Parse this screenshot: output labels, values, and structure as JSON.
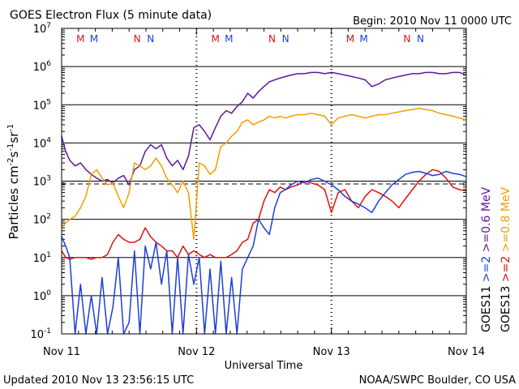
{
  "header": {
    "title": "GOES Electron Flux (5 minute data)",
    "begin": "Begin: 2010 Nov 11 0000 UTC"
  },
  "footer": {
    "updated": "Updated 2010 Nov 13 23:56:15 UTC",
    "credit": "NOAA/SWPC Boulder, CO USA"
  },
  "colors": {
    "goes11_ge2": "#1d3fd8",
    "goes13_ge2": "#e01010",
    "goes11_ge06": "#5a1a9a",
    "goes13_ge08": "#f0a000",
    "marker_M": "#e01010",
    "marker_N_red": "#e01010",
    "marker_N_blue": "#1d3fd8",
    "marker_M_blue": "#1d3fd8",
    "threshold": "#000000"
  },
  "chart_data": {
    "type": "line",
    "title": "GOES Electron Flux (5 minute data)",
    "xlabel": "Universal Time",
    "ylabel": "Particles cm⁻²s⁻¹sr⁻¹",
    "ylabel_parts": {
      "base": "Particles cm",
      "e1": "-2",
      "mid1": "s",
      "e2": "-1",
      "mid2": "sr",
      "e3": "-1"
    },
    "yscale": "log",
    "ylim": [
      0.1,
      10000000
    ],
    "xlim": [
      0,
      3
    ],
    "x_tick_labels": [
      "Nov 11",
      "Nov 12",
      "Nov 13",
      "Nov 14"
    ],
    "y_tick_labels": [
      {
        "base": "10",
        "exp": "7"
      },
      {
        "base": "10",
        "exp": "6"
      },
      {
        "base": "10",
        "exp": "5"
      },
      {
        "base": "10",
        "exp": "4"
      },
      {
        "base": "10",
        "exp": "3"
      },
      {
        "base": "10",
        "exp": "2"
      },
      {
        "base": "10",
        "exp": "1"
      },
      {
        "base": "10",
        "exp": "0"
      },
      {
        "base": "10",
        "exp": "-1"
      }
    ],
    "grid": true,
    "threshold_dashed": 1000,
    "legend_right": [
      {
        "text": "GOES11",
        "color": "#000000"
      },
      {
        "text": ">=2",
        "color": "#1d3fd8"
      },
      {
        "text": ">=0.6 MeV",
        "color": "#5a1a9a"
      },
      {
        "text": "GOES13",
        "color": "#000000"
      },
      {
        "text": ">=2",
        "color": "#e01010"
      },
      {
        "text": ">=0.8 MeV",
        "color": "#f0a000"
      }
    ],
    "markers": [
      {
        "x": 0.14,
        "label": "M",
        "color": "#e01010"
      },
      {
        "x": 0.24,
        "label": "M",
        "color": "#1d3fd8"
      },
      {
        "x": 0.56,
        "label": "N",
        "color": "#e01010"
      },
      {
        "x": 0.66,
        "label": "N",
        "color": "#1d3fd8"
      },
      {
        "x": 1.14,
        "label": "M",
        "color": "#e01010"
      },
      {
        "x": 1.24,
        "label": "M",
        "color": "#1d3fd8"
      },
      {
        "x": 1.56,
        "label": "N",
        "color": "#e01010"
      },
      {
        "x": 1.66,
        "label": "N",
        "color": "#1d3fd8"
      },
      {
        "x": 2.14,
        "label": "M",
        "color": "#e01010"
      },
      {
        "x": 2.24,
        "label": "M",
        "color": "#1d3fd8"
      },
      {
        "x": 2.56,
        "label": "N",
        "color": "#e01010"
      },
      {
        "x": 2.66,
        "label": "N",
        "color": "#1d3fd8"
      }
    ],
    "series": [
      {
        "name": "GOES11 >=0.6 MeV",
        "color": "#5a1a9a",
        "x": [
          0,
          0.03,
          0.06,
          0.1,
          0.14,
          0.18,
          0.22,
          0.26,
          0.3,
          0.34,
          0.38,
          0.42,
          0.46,
          0.5,
          0.54,
          0.58,
          0.62,
          0.66,
          0.7,
          0.74,
          0.78,
          0.82,
          0.86,
          0.9,
          0.94,
          0.98,
          1.02,
          1.06,
          1.1,
          1.14,
          1.18,
          1.22,
          1.26,
          1.3,
          1.34,
          1.38,
          1.42,
          1.46,
          1.5,
          1.54,
          1.58,
          1.62,
          1.66,
          1.7,
          1.75,
          1.8,
          1.85,
          1.9,
          1.95,
          2.0,
          2.05,
          2.1,
          2.15,
          2.2,
          2.25,
          2.3,
          2.35,
          2.4,
          2.45,
          2.5,
          2.55,
          2.6,
          2.65,
          2.7,
          2.75,
          2.8,
          2.85,
          2.9,
          2.95,
          3.0
        ],
        "y": [
          15000,
          6000,
          3500,
          2500,
          3000,
          2000,
          1500,
          1200,
          1000,
          1100,
          900,
          1200,
          1400,
          800,
          2000,
          2500,
          6000,
          9000,
          7000,
          9000,
          4000,
          2500,
          3500,
          2000,
          4500,
          25000,
          30000,
          20000,
          12000,
          25000,
          50000,
          70000,
          60000,
          90000,
          120000,
          200000,
          150000,
          220000,
          300000,
          400000,
          450000,
          500000,
          550000,
          600000,
          650000,
          650000,
          700000,
          700000,
          650000,
          700000,
          650000,
          600000,
          550000,
          500000,
          450000,
          300000,
          350000,
          450000,
          500000,
          550000,
          600000,
          650000,
          650000,
          700000,
          700000,
          650000,
          650000,
          700000,
          700000,
          600000
        ]
      },
      {
        "name": "GOES13 >=0.8 MeV",
        "color": "#f0a000",
        "x": [
          0,
          0.03,
          0.06,
          0.1,
          0.14,
          0.18,
          0.22,
          0.26,
          0.3,
          0.34,
          0.38,
          0.42,
          0.46,
          0.5,
          0.54,
          0.58,
          0.62,
          0.66,
          0.7,
          0.74,
          0.78,
          0.82,
          0.86,
          0.9,
          0.94,
          0.98,
          1.02,
          1.06,
          1.1,
          1.14,
          1.18,
          1.22,
          1.26,
          1.3,
          1.34,
          1.38,
          1.42,
          1.46,
          1.5,
          1.54,
          1.58,
          1.62,
          1.66,
          1.7,
          1.75,
          1.8,
          1.85,
          1.9,
          1.95,
          2.0,
          2.05,
          2.1,
          2.15,
          2.2,
          2.25,
          2.3,
          2.35,
          2.4,
          2.45,
          2.5,
          2.55,
          2.6,
          2.65,
          2.7,
          2.75,
          2.8,
          2.85,
          2.9,
          2.95,
          3.0
        ],
        "y": [
          60,
          80,
          100,
          120,
          200,
          400,
          1500,
          2000,
          1200,
          800,
          900,
          400,
          200,
          500,
          3000,
          2500,
          2000,
          2500,
          4000,
          2500,
          1200,
          800,
          500,
          1000,
          500,
          30,
          3000,
          2500,
          1500,
          2000,
          8000,
          10000,
          15000,
          20000,
          35000,
          40000,
          30000,
          35000,
          40000,
          50000,
          45000,
          50000,
          45000,
          50000,
          55000,
          55000,
          60000,
          55000,
          50000,
          30000,
          45000,
          50000,
          55000,
          50000,
          45000,
          50000,
          55000,
          55000,
          60000,
          65000,
          70000,
          75000,
          80000,
          75000,
          70000,
          60000,
          55000,
          50000,
          45000,
          40000
        ]
      },
      {
        "name": "GOES13 >=2 MeV",
        "color": "#e01010",
        "x": [
          0,
          0.03,
          0.06,
          0.1,
          0.14,
          0.18,
          0.22,
          0.26,
          0.3,
          0.34,
          0.38,
          0.42,
          0.46,
          0.5,
          0.54,
          0.58,
          0.62,
          0.66,
          0.7,
          0.74,
          0.78,
          0.82,
          0.86,
          0.9,
          0.94,
          0.98,
          1.02,
          1.06,
          1.1,
          1.14,
          1.18,
          1.22,
          1.26,
          1.3,
          1.34,
          1.38,
          1.42,
          1.46,
          1.5,
          1.54,
          1.58,
          1.62,
          1.66,
          1.7,
          1.75,
          1.8,
          1.85,
          1.9,
          1.95,
          2.0,
          2.05,
          2.1,
          2.15,
          2.2,
          2.25,
          2.3,
          2.35,
          2.4,
          2.45,
          2.5,
          2.55,
          2.6,
          2.65,
          2.7,
          2.75,
          2.8,
          2.85,
          2.9,
          2.95,
          3.0
        ],
        "y": [
          15,
          10,
          9,
          10,
          10,
          10,
          9,
          10,
          10,
          12,
          25,
          40,
          30,
          25,
          25,
          30,
          60,
          35,
          25,
          20,
          15,
          15,
          10,
          20,
          12,
          15,
          12,
          10,
          12,
          10,
          10,
          10,
          12,
          15,
          25,
          30,
          80,
          100,
          300,
          600,
          500,
          700,
          600,
          700,
          800,
          1000,
          900,
          800,
          600,
          150,
          500,
          600,
          300,
          200,
          400,
          600,
          500,
          400,
          300,
          200,
          350,
          600,
          1000,
          1500,
          2000,
          1800,
          1200,
          700,
          600,
          550
        ]
      },
      {
        "name": "GOES11 >=2 MeV",
        "color": "#1d3fd8",
        "x": [
          0,
          0.03,
          0.06,
          0.1,
          0.14,
          0.18,
          0.22,
          0.26,
          0.3,
          0.34,
          0.38,
          0.42,
          0.46,
          0.5,
          0.54,
          0.58,
          0.62,
          0.66,
          0.7,
          0.74,
          0.78,
          0.82,
          0.86,
          0.9,
          0.94,
          0.98,
          1.02,
          1.06,
          1.1,
          1.14,
          1.18,
          1.22,
          1.26,
          1.3,
          1.34,
          1.38,
          1.42,
          1.46,
          1.5,
          1.54,
          1.58,
          1.62,
          1.66,
          1.7,
          1.75,
          1.8,
          1.85,
          1.9,
          1.95,
          2.0,
          2.05,
          2.1,
          2.15,
          2.2,
          2.25,
          2.3,
          2.35,
          2.4,
          2.45,
          2.5,
          2.55,
          2.6,
          2.65,
          2.7,
          2.75,
          2.8,
          2.85,
          2.9,
          2.95,
          3.0
        ],
        "y": [
          35,
          20,
          10,
          0.1,
          2,
          0.1,
          1,
          0.1,
          3,
          0.1,
          0.5,
          10,
          0.1,
          0.2,
          15,
          0.1,
          20,
          5,
          25,
          2,
          15,
          0.1,
          10,
          0.1,
          12,
          2,
          10,
          0.1,
          5,
          0.1,
          8,
          0.1,
          3,
          0.1,
          5,
          10,
          20,
          100,
          60,
          40,
          200,
          500,
          600,
          800,
          1000,
          900,
          1100,
          1200,
          1000,
          800,
          600,
          400,
          300,
          250,
          200,
          150,
          300,
          500,
          800,
          1100,
          1500,
          1700,
          1800,
          1600,
          1400,
          1500,
          1800,
          1600,
          1500,
          1300
        ]
      }
    ]
  }
}
